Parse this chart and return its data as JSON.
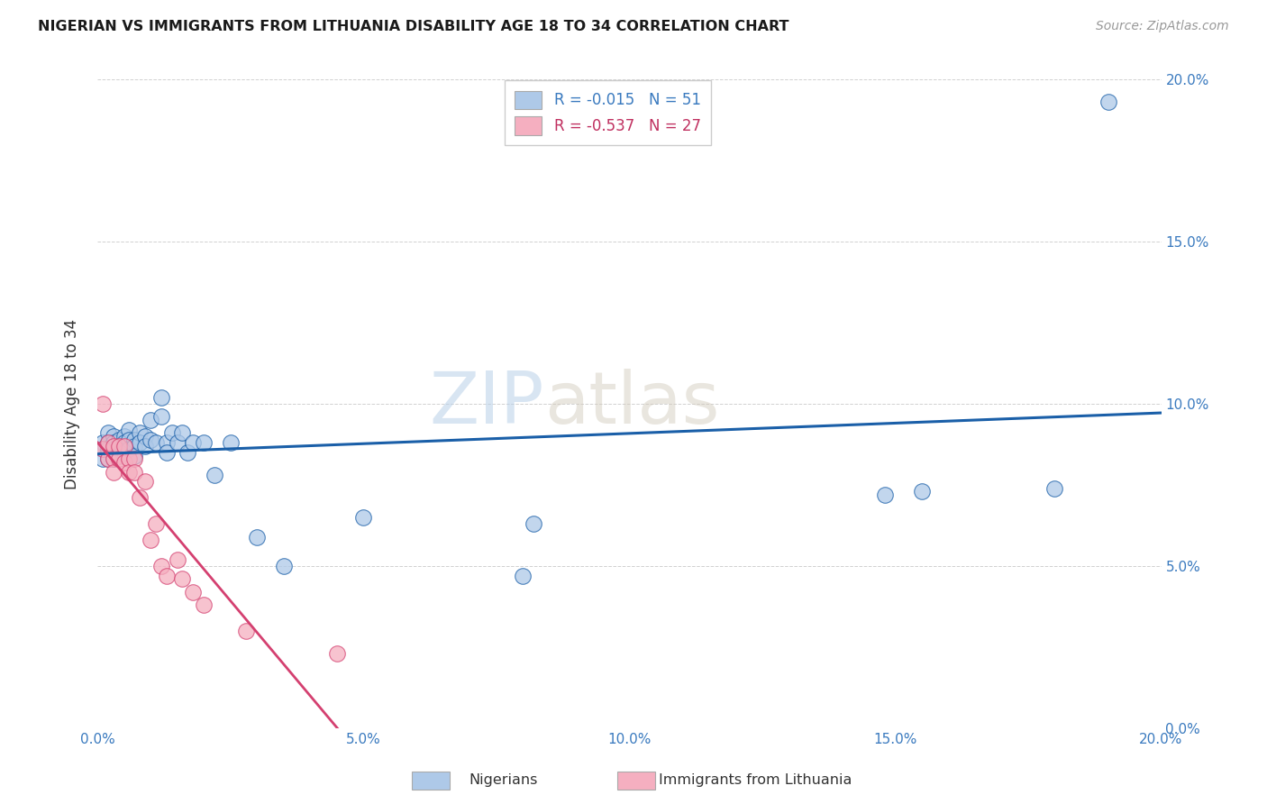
{
  "title": "NIGERIAN VS IMMIGRANTS FROM LITHUANIA DISABILITY AGE 18 TO 34 CORRELATION CHART",
  "source": "Source: ZipAtlas.com",
  "ylabel": "Disability Age 18 to 34",
  "xmin": 0.0,
  "xmax": 0.2,
  "ymin": 0.0,
  "ymax": 0.2,
  "nigerian_R": "-0.015",
  "nigerian_N": "51",
  "lithuania_R": "-0.537",
  "lithuania_N": "27",
  "nigerian_color": "#aec9e8",
  "lithuania_color": "#f5afc0",
  "line_nigerian_color": "#1a5fa8",
  "line_lithuania_color": "#d44070",
  "watermark_zip": "ZIP",
  "watermark_atlas": "atlas",
  "nigerian_x": [
    0.001,
    0.001,
    0.001,
    0.002,
    0.002,
    0.002,
    0.002,
    0.003,
    0.003,
    0.003,
    0.003,
    0.004,
    0.004,
    0.004,
    0.005,
    0.005,
    0.005,
    0.006,
    0.006,
    0.006,
    0.007,
    0.007,
    0.007,
    0.008,
    0.008,
    0.009,
    0.009,
    0.01,
    0.01,
    0.011,
    0.012,
    0.012,
    0.013,
    0.013,
    0.014,
    0.015,
    0.016,
    0.017,
    0.018,
    0.02,
    0.022,
    0.025,
    0.03,
    0.035,
    0.05,
    0.08,
    0.082,
    0.148,
    0.155,
    0.18,
    0.19
  ],
  "nigerian_y": [
    0.088,
    0.086,
    0.083,
    0.091,
    0.088,
    0.086,
    0.083,
    0.09,
    0.088,
    0.086,
    0.083,
    0.089,
    0.087,
    0.084,
    0.09,
    0.088,
    0.085,
    0.092,
    0.089,
    0.086,
    0.089,
    0.087,
    0.084,
    0.091,
    0.088,
    0.09,
    0.087,
    0.095,
    0.089,
    0.088,
    0.102,
    0.096,
    0.088,
    0.085,
    0.091,
    0.088,
    0.091,
    0.085,
    0.088,
    0.088,
    0.078,
    0.088,
    0.059,
    0.05,
    0.065,
    0.047,
    0.063,
    0.072,
    0.073,
    0.074,
    0.193
  ],
  "lithuania_x": [
    0.001,
    0.001,
    0.002,
    0.002,
    0.003,
    0.003,
    0.003,
    0.004,
    0.004,
    0.005,
    0.005,
    0.006,
    0.006,
    0.007,
    0.007,
    0.008,
    0.009,
    0.01,
    0.011,
    0.012,
    0.013,
    0.015,
    0.016,
    0.018,
    0.02,
    0.028,
    0.045
  ],
  "lithuania_y": [
    0.1,
    0.086,
    0.088,
    0.083,
    0.087,
    0.083,
    0.079,
    0.087,
    0.083,
    0.087,
    0.082,
    0.083,
    0.079,
    0.083,
    0.079,
    0.071,
    0.076,
    0.058,
    0.063,
    0.05,
    0.047,
    0.052,
    0.046,
    0.042,
    0.038,
    0.03,
    0.023
  ],
  "xticks": [
    0.0,
    0.05,
    0.1,
    0.15,
    0.2
  ],
  "yticks": [
    0.0,
    0.05,
    0.1,
    0.15,
    0.2
  ],
  "xtick_labels": [
    "0.0%",
    "5.0%",
    "10.0%",
    "15.0%",
    "20.0%"
  ],
  "ytick_labels": [
    "0.0%",
    "5.0%",
    "10.0%",
    "15.0%",
    "20.0%"
  ]
}
